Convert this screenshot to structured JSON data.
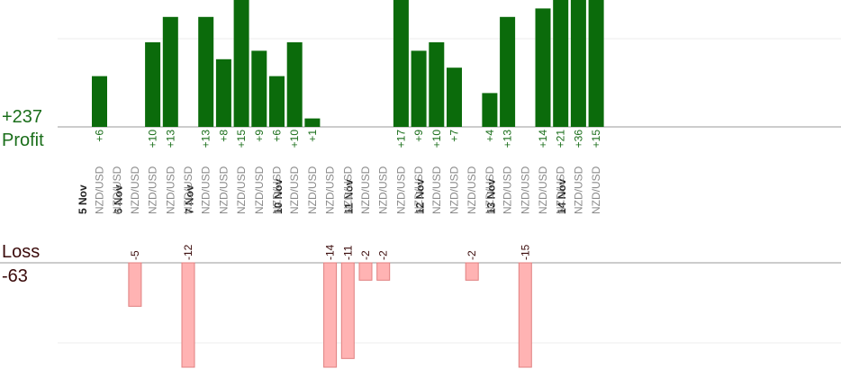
{
  "summary": {
    "profit_total": "+237",
    "profit_label": "Profit",
    "loss_label": "Loss",
    "loss_total": "-63"
  },
  "colors": {
    "profit_bar": "#0b6b0b",
    "profit_text": "#1a6e1a",
    "loss_bar": "#ffb3b3",
    "loss_bar_border": "#e08080",
    "loss_text": "#3a0a0a",
    "day_text": "#222222",
    "pair_text": "#8a8a8a"
  },
  "chart_data": {
    "type": "bar",
    "profit_ylim": [
      0,
      15
    ],
    "loss_ylim": [
      -12,
      0
    ],
    "days": [
      "5 Nov",
      "6 Nov",
      "7 Nov",
      "10 Nov",
      "11 Nov",
      "12 Nov",
      "13 Nov",
      "14 Nov"
    ],
    "trades": [
      {
        "day": 0,
        "pair": "NZD/USD",
        "value": 6
      },
      {
        "day": 0,
        "pair": "NZD/USD",
        "value": null
      },
      {
        "day": 1,
        "pair": "NZD/USD",
        "value": -5
      },
      {
        "day": 1,
        "pair": "NZD/USD",
        "value": 10
      },
      {
        "day": 1,
        "pair": "NZD/USD",
        "value": 13
      },
      {
        "day": 1,
        "pair": "NZD/USD",
        "value": -12
      },
      {
        "day": 2,
        "pair": "NZD/USD",
        "value": 13
      },
      {
        "day": 2,
        "pair": "NZD/USD",
        "value": 8
      },
      {
        "day": 2,
        "pair": "NZD/USD",
        "value": 15
      },
      {
        "day": 2,
        "pair": "NZD/USD",
        "value": 9
      },
      {
        "day": 2,
        "pair": "NZD/USD",
        "value": 6
      },
      {
        "day": 3,
        "pair": "NZD/USD",
        "value": 10
      },
      {
        "day": 3,
        "pair": "NZD/USD",
        "value": 1
      },
      {
        "day": 3,
        "pair": "NZD/USD",
        "value": -14
      },
      {
        "day": 3,
        "pair": "NZD/USD",
        "value": -11
      },
      {
        "day": 4,
        "pair": "NZD/USD",
        "value": -2
      },
      {
        "day": 4,
        "pair": "NZD/USD",
        "value": -2
      },
      {
        "day": 4,
        "pair": "NZD/USD",
        "value": 17
      },
      {
        "day": 4,
        "pair": "NZD/USD",
        "value": 9
      },
      {
        "day": 5,
        "pair": "NZD/USD",
        "value": 10
      },
      {
        "day": 5,
        "pair": "NZD/USD",
        "value": 7
      },
      {
        "day": 5,
        "pair": "NZD/USD",
        "value": -2
      },
      {
        "day": 5,
        "pair": "NZD/USD",
        "value": 4
      },
      {
        "day": 6,
        "pair": "NZD/USD",
        "value": 13
      },
      {
        "day": 6,
        "pair": "NZD/USD",
        "value": -15
      },
      {
        "day": 6,
        "pair": "NZD/USD",
        "value": 14
      },
      {
        "day": 6,
        "pair": "NZD/USD",
        "value": 21
      },
      {
        "day": 7,
        "pair": "NZD/USD",
        "value": 36
      },
      {
        "day": 7,
        "pair": "NZD/USD",
        "value": 15
      }
    ]
  }
}
